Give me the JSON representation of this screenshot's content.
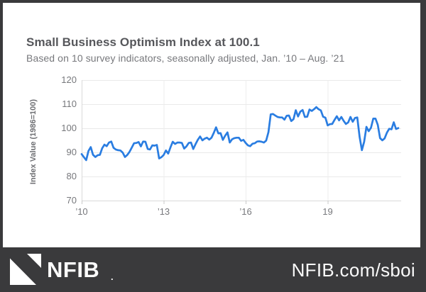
{
  "header": {
    "title": "Small Business Optimism Index at 100.1",
    "subtitle": "Based on 10 survey indicators, seasonally adjusted, Jan. ’10 – Aug. ’21"
  },
  "chart_data": {
    "type": "line",
    "title": "Small Business Optimism Index at 100.1",
    "xlabel": "",
    "ylabel": "Index Value (1986=100)",
    "ylim": [
      70,
      120
    ],
    "yticks": [
      120,
      110,
      100,
      90,
      80,
      70
    ],
    "xticks": [
      {
        "label": "’10",
        "month_index": 0
      },
      {
        "label": "’13",
        "month_index": 36
      },
      {
        "label": "’16",
        "month_index": 72
      },
      {
        "label": "19",
        "month_index": 108
      }
    ],
    "x_start": "2010-01",
    "x_end": "2021-08",
    "grid": true,
    "legend_position": "none",
    "series": [
      {
        "name": "Small Business Optimism Index",
        "color": "#2a7de1",
        "values": [
          89.3,
          88.0,
          86.8,
          90.6,
          92.2,
          89.0,
          88.1,
          88.8,
          89.0,
          91.7,
          93.2,
          92.6,
          94.1,
          94.5,
          91.9,
          91.2,
          90.9,
          90.8,
          89.9,
          88.1,
          88.9,
          90.2,
          92.0,
          93.8,
          93.9,
          94.3,
          92.5,
          94.5,
          94.4,
          91.4,
          91.2,
          92.9,
          92.8,
          93.1,
          87.5,
          88.0,
          88.9,
          90.8,
          89.5,
          92.1,
          94.4,
          93.5,
          94.1,
          94.1,
          93.9,
          91.6,
          92.5,
          93.9,
          94.1,
          91.4,
          93.4,
          95.2,
          96.6,
          95.0,
          95.7,
          96.1,
          95.3,
          96.1,
          98.1,
          100.4,
          97.9,
          98.0,
          95.2,
          96.9,
          98.3,
          94.1,
          95.4,
          95.9,
          96.1,
          96.1,
          94.8,
          95.2,
          93.9,
          92.9,
          92.6,
          93.6,
          93.8,
          94.5,
          94.6,
          94.4,
          94.1,
          94.9,
          98.4,
          105.8,
          105.9,
          105.3,
          104.7,
          104.5,
          104.5,
          103.6,
          105.2,
          105.3,
          103.0,
          103.8,
          107.5,
          104.9,
          106.9,
          107.6,
          104.7,
          104.8,
          107.8,
          107.2,
          107.9,
          108.8,
          107.9,
          107.4,
          104.8,
          104.4,
          101.2,
          101.7,
          101.8,
          103.5,
          105.0,
          103.3,
          104.7,
          103.1,
          101.8,
          102.4,
          104.7,
          102.7,
          104.3,
          104.5,
          96.4,
          90.9,
          94.4,
          100.6,
          98.8,
          100.2,
          104.0,
          104.0,
          101.4,
          95.9,
          95.0,
          95.8,
          98.2,
          99.8,
          99.6,
          102.5,
          99.7,
          100.1
        ]
      }
    ]
  },
  "footer": {
    "brand": "NFIB",
    "brand_mark": ".",
    "url": "NFIB.com/sboi"
  },
  "colors": {
    "accent_blue": "#2a7de1",
    "footer_bg": "#3a3a3c",
    "card_bg": "#ffffff",
    "title_text": "#56575b",
    "subtitle_text": "#77787c"
  }
}
